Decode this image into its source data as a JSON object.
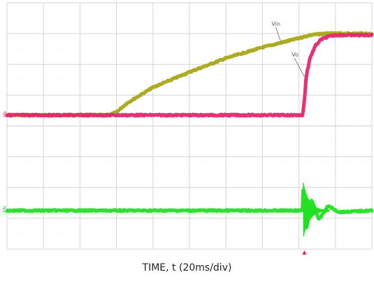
{
  "chart_data": {
    "type": "line",
    "title": "",
    "xlabel": "TIME, t (20ms/div)",
    "ylabel": "",
    "grid": true,
    "x_unit_per_div": "20ms",
    "xlim": [
      0,
      10
    ],
    "ylim": [
      0,
      8
    ],
    "x_units": "div",
    "y_units": "div",
    "series": [
      {
        "name": "Vin",
        "label_text": "Vin",
        "color": "#a8a818",
        "x": [
          0,
          2.8,
          3.0,
          3.3,
          4.0,
          5.0,
          6.0,
          7.0,
          8.0,
          8.3,
          8.7,
          9.2,
          10.0
        ],
        "y": [
          4.35,
          4.35,
          4.45,
          4.75,
          5.25,
          5.75,
          6.2,
          6.55,
          6.85,
          6.95,
          7.0,
          7.0,
          7.0
        ]
      },
      {
        "name": "Vo",
        "label_text": "Vo",
        "color": "#e8246e",
        "x": [
          0,
          8.1,
          8.15,
          8.2,
          8.3,
          8.45,
          8.6,
          8.8,
          9.0,
          10.0
        ],
        "y": [
          4.35,
          4.35,
          4.8,
          5.6,
          6.2,
          6.6,
          6.8,
          6.9,
          6.95,
          6.95
        ]
      },
      {
        "name": "EN",
        "label_text": "EN",
        "color": "#22e022",
        "x": [
          0,
          8.1,
          8.12,
          8.2,
          8.35,
          8.55,
          8.8,
          9.1,
          10.0
        ],
        "y": [
          1.25,
          1.25,
          2.1,
          0.6,
          1.6,
          0.95,
          1.4,
          1.2,
          1.25
        ]
      }
    ],
    "annotations": [
      "Vin",
      "Vo"
    ],
    "channel_markers": [
      "Vo",
      "EN"
    ],
    "trigger_marker": "▲",
    "colors": {
      "grid": "#d6d6d6",
      "grid_dots": "#c4c4c4",
      "trigger": "#e8246e"
    }
  }
}
